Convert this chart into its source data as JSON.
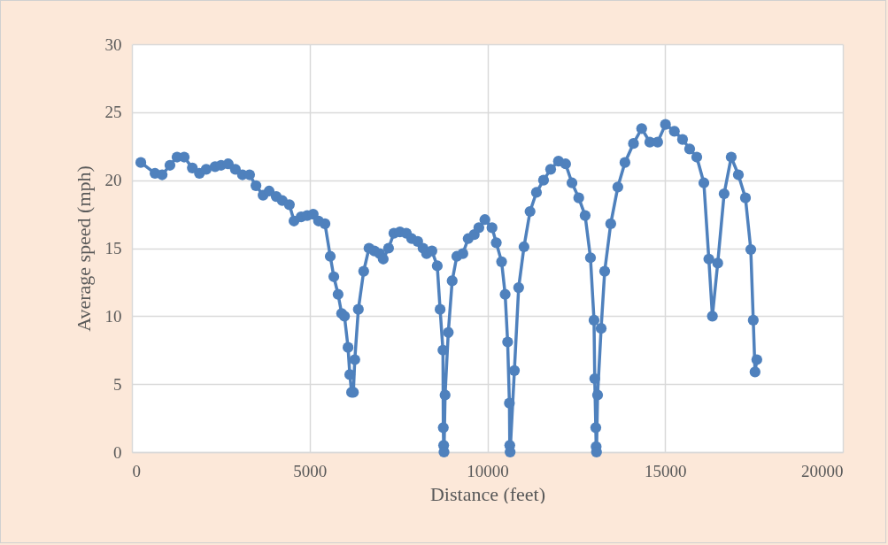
{
  "chart_data": {
    "type": "line",
    "xlabel": "Distance (feet)",
    "ylabel": "Average speed (mph)",
    "xlim": [
      0,
      20000
    ],
    "xticks": [
      0,
      5000,
      10000,
      15000,
      20000
    ],
    "ylim": [
      0,
      30
    ],
    "yticks": [
      0,
      5,
      10,
      15,
      20,
      25,
      30
    ],
    "grid": true,
    "marker": "circle",
    "line_style": "solid",
    "series": [
      {
        "color": "#4f81bd",
        "x": [
          250,
          650,
          850,
          1070,
          1270,
          1470,
          1700,
          1900,
          2090,
          2340,
          2510,
          2710,
          2910,
          3110,
          3310,
          3490,
          3690,
          3860,
          4060,
          4230,
          4430,
          4560,
          4760,
          4930,
          5100,
          5250,
          5430,
          5580,
          5680,
          5800,
          5900,
          5980,
          6080,
          6130,
          6180,
          6230,
          6270,
          6370,
          6520,
          6670,
          6820,
          6970,
          7070,
          7220,
          7370,
          7540,
          7720,
          7870,
          8040,
          8190,
          8290,
          8440,
          8590,
          8670,
          8750,
          8760,
          8770,
          8780,
          8810,
          8900,
          9010,
          9140,
          9310,
          9460,
          9630,
          9760,
          9930,
          10130,
          10250,
          10400,
          10500,
          10570,
          10620,
          10630,
          10640,
          10760,
          10880,
          11030,
          11200,
          11380,
          11580,
          11780,
          12000,
          12200,
          12380,
          12570,
          12750,
          12900,
          13000,
          13020,
          13050,
          13060,
          13070,
          13100,
          13200,
          13300,
          13470,
          13670,
          13870,
          14110,
          14340,
          14570,
          14790,
          15010,
          15260,
          15490,
          15690,
          15890,
          16090,
          16230,
          16330,
          16480,
          16660,
          16860,
          17060,
          17260,
          17410,
          17480,
          17530,
          17580
        ],
        "values": [
          21.3,
          20.5,
          20.4,
          21.1,
          21.7,
          21.7,
          20.9,
          20.5,
          20.8,
          21.0,
          21.1,
          21.2,
          20.8,
          20.4,
          20.4,
          19.6,
          18.9,
          19.2,
          18.8,
          18.5,
          18.2,
          17.0,
          17.3,
          17.4,
          17.5,
          17.0,
          16.8,
          14.4,
          12.9,
          11.6,
          10.2,
          10.0,
          7.7,
          5.7,
          4.4,
          4.4,
          6.8,
          10.5,
          13.3,
          15.0,
          14.8,
          14.6,
          14.2,
          15.0,
          16.1,
          16.2,
          16.1,
          15.7,
          15.5,
          15.0,
          14.6,
          14.8,
          13.7,
          10.5,
          7.5,
          1.8,
          0.5,
          0,
          4.2,
          8.8,
          12.6,
          14.4,
          14.6,
          15.7,
          16.0,
          16.5,
          17.1,
          16.5,
          15.4,
          14.0,
          11.6,
          8.1,
          3.6,
          0.5,
          0,
          6.0,
          12.1,
          15.1,
          17.7,
          19.1,
          20.0,
          20.8,
          21.4,
          21.2,
          19.8,
          18.7,
          17.4,
          14.3,
          9.7,
          5.4,
          1.8,
          0.4,
          0,
          4.2,
          9.1,
          13.3,
          16.8,
          19.5,
          21.3,
          22.7,
          23.8,
          22.8,
          22.8,
          24.1,
          23.6,
          23.0,
          22.3,
          21.7,
          19.8,
          14.2,
          10.0,
          13.9,
          19.0,
          21.7,
          20.4,
          18.7,
          14.9,
          9.7,
          5.9,
          6.8
        ]
      }
    ]
  }
}
